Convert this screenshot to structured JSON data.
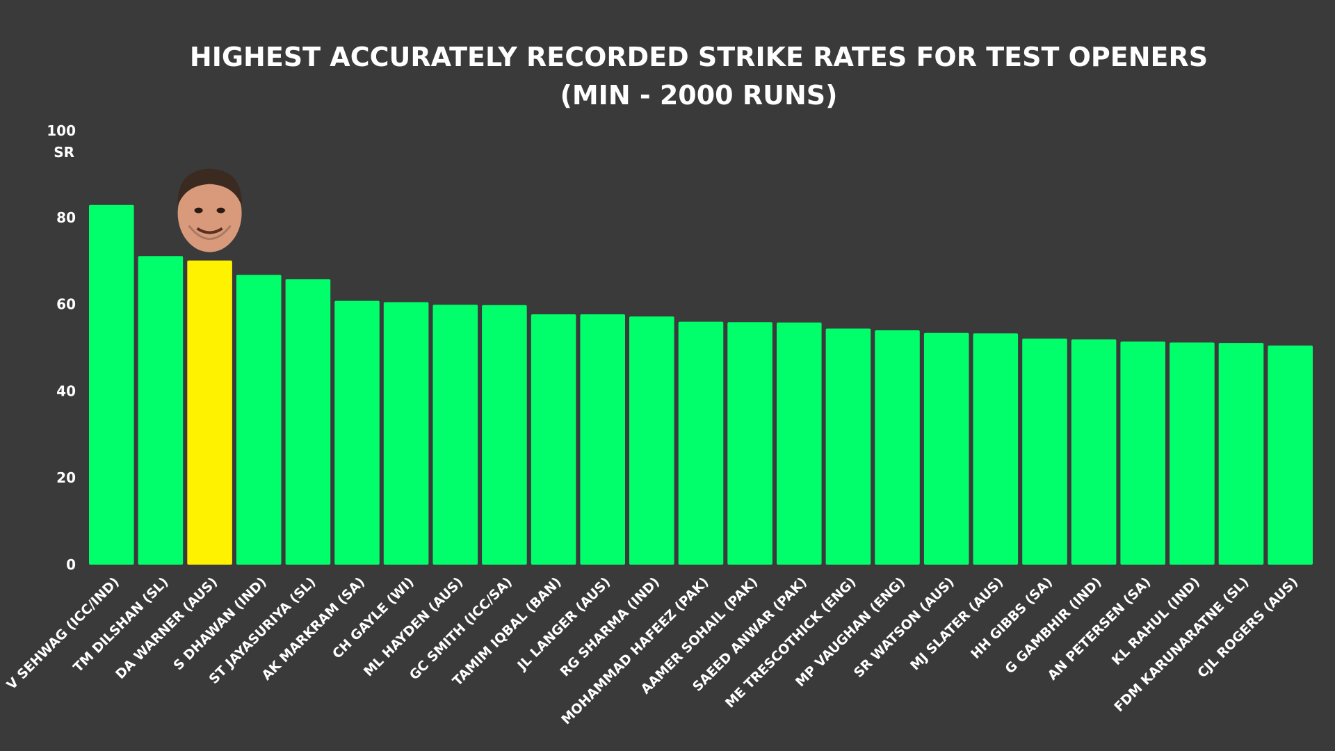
{
  "chart_data": {
    "type": "bar",
    "title_line1": "HIGHEST ACCURATELY RECORDED STRIKE RATES FOR TEST OPENERS",
    "title_line2": "(MIN - 2000 RUNS)",
    "ylabel": "SR",
    "ylim": [
      0,
      100
    ],
    "yticks": [
      0,
      20,
      40,
      60,
      80,
      100
    ],
    "grid": false,
    "categories": [
      "V SEHWAG (ICC/IND)",
      "TM DILSHAN (SL)",
      "DA WARNER (AUS)",
      "S DHAWAN (IND)",
      "ST JAYASURIYA (SL)",
      "AK MARKRAM (SA)",
      "CH GAYLE (WI)",
      "ML HAYDEN (AUS)",
      "GC SMITH (ICC/SA)",
      "TAMIM IQBAL (BAN)",
      "JL LANGER (AUS)",
      "RG SHARMA (IND)",
      "MOHAMMAD HAFEEZ (PAK)",
      "AAMER SOHAIL (PAK)",
      "SAEED ANWAR (PAK)",
      "ME TRESCOTHICK (ENG)",
      "MP VAUGHAN (ENG)",
      "SR WATSON (AUS)",
      "MJ SLATER (AUS)",
      "HH GIBBS (SA)",
      "G GAMBHIR (IND)",
      "AN PETERSEN (SA)",
      "KL RAHUL (IND)",
      "FDM KARUNARATNE (SL)",
      "CJL ROGERS (AUS)"
    ],
    "values": [
      82.9,
      71.1,
      70.1,
      66.8,
      65.8,
      60.8,
      60.5,
      59.9,
      59.8,
      57.7,
      57.7,
      57.2,
      56.0,
      55.9,
      55.8,
      54.4,
      54.0,
      53.4,
      53.3,
      52.1,
      51.9,
      51.4,
      51.2,
      51.1,
      50.5
    ],
    "highlight_index": 2,
    "colors": {
      "background": "#3a3a3a",
      "bar": "#00ff6a",
      "highlight": "#fff200",
      "text": "#ffffff"
    }
  }
}
